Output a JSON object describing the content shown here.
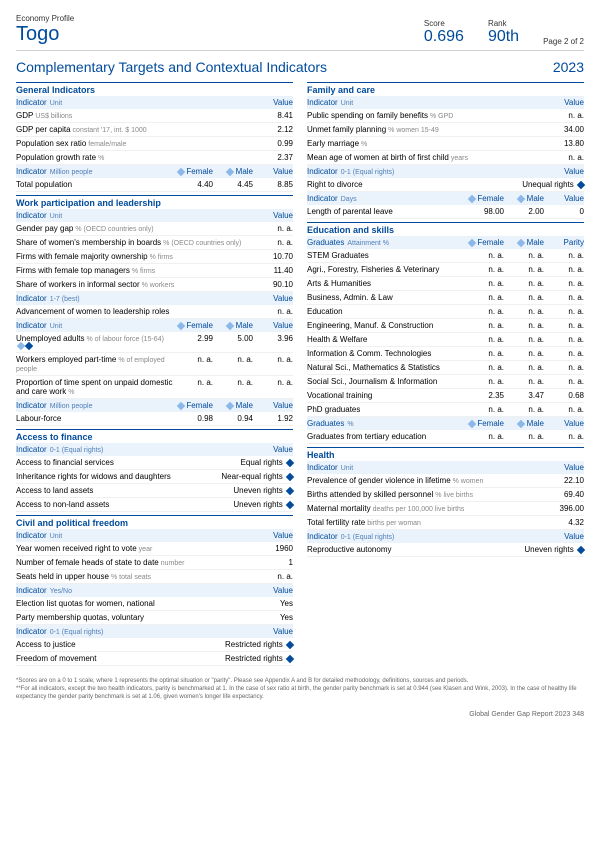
{
  "header": {
    "economy_label": "Economy Profile",
    "country": "Togo",
    "score_label": "Score",
    "score": "0.696",
    "rank_label": "Rank",
    "rank": "90th",
    "page": "Page 2 of 2"
  },
  "title": "Complementary Targets and Contextual Indicators",
  "year": "2023",
  "left_sections": [
    {
      "head": "General Indicators",
      "sub": {
        "c1": "Indicator",
        "unit": "Unit",
        "cols": [],
        "last": "Value"
      },
      "rows": [
        {
          "c1": "GDP",
          "unit": "US$ billions",
          "v": "8.41"
        },
        {
          "c1": "GDP per capita",
          "unit": "constant '17, int. $ 1000",
          "v": "2.12"
        },
        {
          "c1": "Population sex ratio",
          "unit": "female/male",
          "v": "0.99"
        },
        {
          "c1": "Population growth rate",
          "unit": "%",
          "v": "2.37"
        }
      ],
      "sub2": {
        "c1": "Indicator",
        "unit": "Million people",
        "cols": [
          "Female",
          "Male"
        ],
        "last": "Value"
      },
      "rows2": [
        {
          "c1": "Total population",
          "f": "4.40",
          "m": "4.45",
          "v": "8.85"
        }
      ]
    },
    {
      "head": "Work participation and leadership",
      "sub": {
        "c1": "Indicator",
        "unit": "Unit",
        "cols": [],
        "last": "Value"
      },
      "rows": [
        {
          "c1": "Gender pay gap",
          "unit": "% (OECD countries only)",
          "v": "n. a."
        },
        {
          "c1": "Share of women's membership in boards",
          "unit": "% (OECD countries only)",
          "v": "n. a."
        },
        {
          "c1": "Firms with female majority ownership",
          "unit": "% firms",
          "v": "10.70"
        },
        {
          "c1": "Firms with female top managers",
          "unit": "% firms",
          "v": "11.40"
        },
        {
          "c1": "Share of workers in informal sector",
          "unit": "% workers",
          "v": "90.10"
        }
      ],
      "sub2": {
        "c1": "Indicator",
        "unit": "1-7 (best)",
        "cols": [],
        "last": "Value"
      },
      "rows2": [
        {
          "c1": "Advancement of women to leadership roles",
          "v": "n. a."
        }
      ],
      "sub3": {
        "c1": "Indicator",
        "unit": "Unit",
        "cols": [
          "Female",
          "Male"
        ],
        "last": "Value"
      },
      "rows3": [
        {
          "c1": "Unemployed adults",
          "unit": "% of labour force (15-64)",
          "f": "2.99",
          "m": "5.00",
          "v": "3.96",
          "markers": true
        },
        {
          "c1": "Workers employed part-time",
          "unit": "% of employed people",
          "f": "n. a.",
          "m": "n. a.",
          "v": "n. a."
        },
        {
          "c1": "Proportion of time spent on unpaid domestic and care work",
          "unit": "%",
          "f": "n. a.",
          "m": "n. a.",
          "v": "n. a."
        }
      ],
      "sub4": {
        "c1": "Indicator",
        "unit": "Million people",
        "cols": [
          "Female",
          "Male"
        ],
        "last": "Value"
      },
      "rows4": [
        {
          "c1": "Labour-force",
          "f": "0.98",
          "m": "0.94",
          "v": "1.92"
        }
      ]
    },
    {
      "head": "Access to finance",
      "sub": {
        "c1": "Indicator",
        "unit": "0-1 (Equal rights)",
        "cols": [],
        "last": "Value"
      },
      "rows": [
        {
          "c1": "Access to financial services",
          "v": "Equal rights",
          "dia": true
        },
        {
          "c1": "Inheritance rights for widows and daughters",
          "v": "Near-equal rights",
          "dia": true
        },
        {
          "c1": "Access to land assets",
          "v": "Uneven rights",
          "dia": true
        },
        {
          "c1": "Access to non-land assets",
          "v": "Uneven rights",
          "dia": true
        }
      ]
    },
    {
      "head": "Civil and political freedom",
      "sub": {
        "c1": "Indicator",
        "unit": "Unit",
        "cols": [],
        "last": "Value"
      },
      "rows": [
        {
          "c1": "Year women received right to vote",
          "unit": "year",
          "v": "1960"
        },
        {
          "c1": "Number of female heads of state to date",
          "unit": "number",
          "v": "1"
        },
        {
          "c1": "Seats held in upper house",
          "unit": "% total seats",
          "v": "n. a."
        }
      ],
      "sub2": {
        "c1": "Indicator",
        "unit": "Yes/No",
        "cols": [],
        "last": "Value"
      },
      "rows2": [
        {
          "c1": "Election list quotas for women, national",
          "v": "Yes"
        },
        {
          "c1": "Party membership quotas, voluntary",
          "v": "Yes"
        }
      ],
      "sub3": {
        "c1": "Indicator",
        "unit": "0-1 (Equal rights)",
        "cols": [],
        "last": "Value"
      },
      "rows3": [
        {
          "c1": "Access to justice",
          "v": "Restricted rights",
          "dia": true
        },
        {
          "c1": "Freedom of movement",
          "v": "Restricted rights",
          "dia": true
        }
      ]
    }
  ],
  "right_sections": [
    {
      "head": "Family and care",
      "sub": {
        "c1": "Indicator",
        "unit": "Unit",
        "cols": [],
        "last": "Value"
      },
      "rows": [
        {
          "c1": "Public spending on family benefits",
          "unit": "% GPD",
          "v": "n. a."
        },
        {
          "c1": "Unmet family planning",
          "unit": "% women 15-49",
          "v": "34.00"
        },
        {
          "c1": "Early marriage",
          "unit": "%",
          "v": "13.80"
        },
        {
          "c1": "Mean age of women at birth of first child",
          "unit": "years",
          "v": "n. a."
        }
      ],
      "sub2": {
        "c1": "Indicator",
        "unit": "0-1 (Equal rights)",
        "cols": [],
        "last": "Value"
      },
      "rows2": [
        {
          "c1": "Right to divorce",
          "v": "Unequal rights",
          "dia": true
        }
      ],
      "sub3": {
        "c1": "Indicator",
        "unit": "Days",
        "cols": [
          "Female",
          "Male"
        ],
        "last": "Value"
      },
      "rows3": [
        {
          "c1": "Length of parental leave",
          "f": "98.00",
          "m": "2.00",
          "v": "0"
        }
      ]
    },
    {
      "head": "Education and skills",
      "sub": {
        "c1": "Graduates",
        "unit": "Attainment %",
        "cols": [
          "Female",
          "Male"
        ],
        "last": "Parity"
      },
      "rows": [
        {
          "c1": "STEM Graduates",
          "f": "n. a.",
          "m": "n. a.",
          "v": "n. a."
        },
        {
          "c1": "Agri., Forestry, Fisheries & Veterinary",
          "f": "n. a.",
          "m": "n. a.",
          "v": "n. a."
        },
        {
          "c1": "Arts & Humanities",
          "f": "n. a.",
          "m": "n. a.",
          "v": "n. a."
        },
        {
          "c1": "Business, Admin. & Law",
          "f": "n. a.",
          "m": "n. a.",
          "v": "n. a."
        },
        {
          "c1": "Education",
          "f": "n. a.",
          "m": "n. a.",
          "v": "n. a."
        },
        {
          "c1": "Engineering, Manuf. & Construction",
          "f": "n. a.",
          "m": "n. a.",
          "v": "n. a."
        },
        {
          "c1": "Health & Welfare",
          "f": "n. a.",
          "m": "n. a.",
          "v": "n. a."
        },
        {
          "c1": "Information & Comm. Technologies",
          "f": "n. a.",
          "m": "n. a.",
          "v": "n. a."
        },
        {
          "c1": "Natural Sci., Mathematics & Statistics",
          "f": "n. a.",
          "m": "n. a.",
          "v": "n. a."
        },
        {
          "c1": "Social Sci., Journalism & Information",
          "f": "n. a.",
          "m": "n. a.",
          "v": "n. a."
        },
        {
          "c1": "Vocational training",
          "f": "2.35",
          "m": "3.47",
          "v": "0.68"
        },
        {
          "c1": "PhD graduates",
          "f": "n. a.",
          "m": "n. a.",
          "v": "n. a."
        }
      ],
      "sub2": {
        "c1": "Graduates",
        "unit": "%",
        "cols": [
          "Female",
          "Male"
        ],
        "last": "Value"
      },
      "rows2": [
        {
          "c1": "Graduates from tertiary education",
          "f": "n. a.",
          "m": "n. a.",
          "v": "n. a."
        }
      ]
    },
    {
      "head": "Health",
      "sub": {
        "c1": "Indicator",
        "unit": "Unit",
        "cols": [],
        "last": "Value"
      },
      "rows": [
        {
          "c1": "Prevalence of gender violence in lifetime",
          "unit": "% women",
          "v": "22.10"
        },
        {
          "c1": "Births attended by skilled personnel",
          "unit": "% live births",
          "v": "69.40"
        },
        {
          "c1": "Maternal mortality",
          "unit": "deaths per 100,000 live births",
          "v": "396.00"
        },
        {
          "c1": "Total fertility rate",
          "unit": "births per woman",
          "v": "4.32"
        }
      ],
      "sub2": {
        "c1": "Indicator",
        "unit": "0-1 (Equal rights)",
        "cols": [],
        "last": "Value"
      },
      "rows2": [
        {
          "c1": "Reproductive autonomy",
          "v": "Uneven rights",
          "dia": true
        }
      ]
    }
  ],
  "footnotes": [
    "*Scores are on a 0 to 1 scale, where 1 represents the optimal situation or \"parity\". Please see Appendix A and B for detailed methodology, definitions, sources and periods.",
    "**For all indicators, except the two health indicators, parity is benchmarked at 1. In the case of sex ratio at birth, the gender parity benchmark is set at 0.944 (see Klasen and Wink, 2003). In the case of healthy life expectancy the gender parity benchmark is set at 1.06, given women's longer life expectancy."
  ],
  "footer": "Global Gender Gap Report 2023   348"
}
